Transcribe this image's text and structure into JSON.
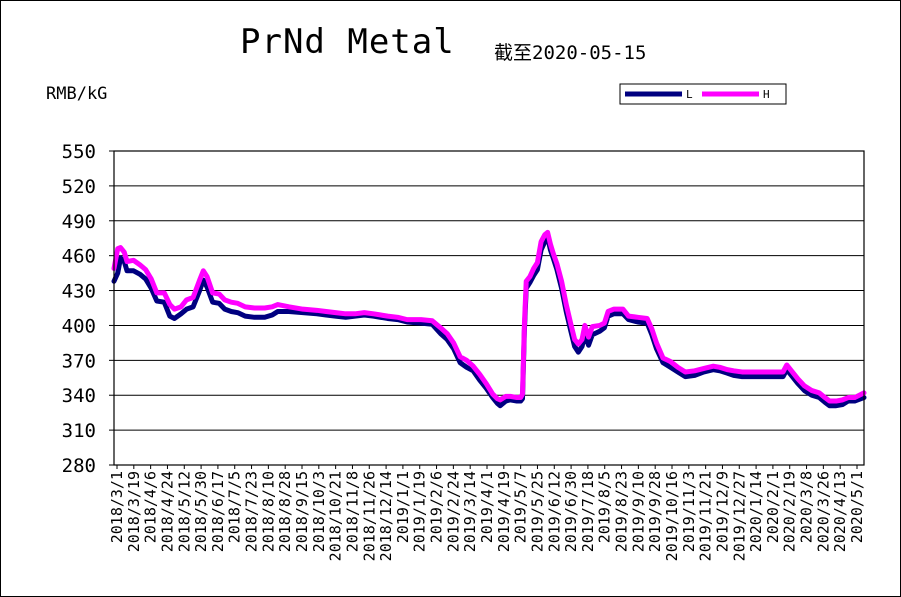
{
  "header": {
    "title": "PrNd Metal",
    "subtitle": "截至2020-05-15",
    "unit": "RMB/kG"
  },
  "colors": {
    "L": "#000080",
    "H": "#ff00ff",
    "grid": "#000000",
    "plot_bg": "#ffffff"
  },
  "chart_data": {
    "type": "line",
    "title": "PrNd Metal",
    "subtitle": "截至2020-05-15",
    "ylabel": "RMB/kG",
    "ylim": [
      280,
      550
    ],
    "yticks": [
      280,
      310,
      340,
      370,
      400,
      430,
      460,
      490,
      520,
      550
    ],
    "grid": true,
    "legend": "top-right",
    "xlim": [
      "2018-03-01",
      "2020-05-15"
    ],
    "xtick_labels": [
      "2018/3/1",
      "2018/3/19",
      "2018/4/6",
      "2018/4/24",
      "2018/5/12",
      "2018/5/30",
      "2018/6/17",
      "2018/7/5",
      "2018/7/23",
      "2018/8/10",
      "2018/8/28",
      "2018/9/15",
      "2018/10/3",
      "2018/10/21",
      "2018/11/8",
      "2018/11/26",
      "2018/12/14",
      "2019/1/1",
      "2019/1/19",
      "2019/2/6",
      "2019/2/24",
      "2019/3/14",
      "2019/4/1",
      "2019/4/19",
      "2019/5/7",
      "2019/5/25",
      "2019/6/12",
      "2019/6/30",
      "2019/7/18",
      "2019/8/5",
      "2019/8/23",
      "2019/9/10",
      "2019/9/28",
      "2019/10/16",
      "2019/11/3",
      "2019/11/21",
      "2019/12/9",
      "2019/12/27",
      "2020/1/14",
      "2020/2/1",
      "2020/2/19",
      "2020/3/8",
      "2020/3/26",
      "2020/4/13",
      "2020/5/1"
    ],
    "series": [
      {
        "name": "L",
        "points": [
          [
            "2018-03-01",
            438
          ],
          [
            "2018-03-05",
            445
          ],
          [
            "2018-03-08",
            458
          ],
          [
            "2018-03-12",
            455
          ],
          [
            "2018-03-15",
            447
          ],
          [
            "2018-03-22",
            447
          ],
          [
            "2018-03-29",
            444
          ],
          [
            "2018-04-04",
            440
          ],
          [
            "2018-04-10",
            432
          ],
          [
            "2018-04-16",
            421
          ],
          [
            "2018-04-24",
            420
          ],
          [
            "2018-04-30",
            408
          ],
          [
            "2018-05-05",
            406
          ],
          [
            "2018-05-12",
            410
          ],
          [
            "2018-05-18",
            414
          ],
          [
            "2018-05-25",
            416
          ],
          [
            "2018-06-01",
            430
          ],
          [
            "2018-06-05",
            439
          ],
          [
            "2018-06-09",
            433
          ],
          [
            "2018-06-15",
            420
          ],
          [
            "2018-06-22",
            419
          ],
          [
            "2018-06-28",
            414
          ],
          [
            "2018-07-05",
            412
          ],
          [
            "2018-07-12",
            411
          ],
          [
            "2018-07-20",
            408
          ],
          [
            "2018-07-30",
            407
          ],
          [
            "2018-08-10",
            407
          ],
          [
            "2018-08-18",
            409
          ],
          [
            "2018-08-24",
            412
          ],
          [
            "2018-09-05",
            412
          ],
          [
            "2018-09-20",
            411
          ],
          [
            "2018-10-05",
            410
          ],
          [
            "2018-10-15",
            409
          ],
          [
            "2018-10-25",
            408
          ],
          [
            "2018-11-05",
            407
          ],
          [
            "2018-11-15",
            408
          ],
          [
            "2018-11-25",
            409
          ],
          [
            "2018-12-05",
            408
          ],
          [
            "2018-12-20",
            406
          ],
          [
            "2018-12-31",
            405
          ],
          [
            "2019-01-10",
            403
          ],
          [
            "2019-01-25",
            402
          ],
          [
            "2019-02-06",
            401
          ],
          [
            "2019-02-15",
            393
          ],
          [
            "2019-02-22",
            388
          ],
          [
            "2019-03-01",
            380
          ],
          [
            "2019-03-08",
            368
          ],
          [
            "2019-03-15",
            364
          ],
          [
            "2019-03-22",
            361
          ],
          [
            "2019-03-29",
            353
          ],
          [
            "2019-04-05",
            346
          ],
          [
            "2019-04-12",
            338
          ],
          [
            "2019-04-17",
            333
          ],
          [
            "2019-04-20",
            331
          ],
          [
            "2019-04-26",
            335
          ],
          [
            "2019-05-01",
            336
          ],
          [
            "2019-05-08",
            335
          ],
          [
            "2019-05-12",
            335
          ],
          [
            "2019-05-14",
            337
          ],
          [
            "2019-05-16",
            395
          ],
          [
            "2019-05-18",
            432
          ],
          [
            "2019-05-22",
            437
          ],
          [
            "2019-05-26",
            443
          ],
          [
            "2019-05-30",
            448
          ],
          [
            "2019-06-03",
            465
          ],
          [
            "2019-06-07",
            472
          ],
          [
            "2019-06-10",
            476
          ],
          [
            "2019-06-13",
            465
          ],
          [
            "2019-06-16",
            458
          ],
          [
            "2019-06-20",
            448
          ],
          [
            "2019-06-25",
            432
          ],
          [
            "2019-06-30",
            412
          ],
          [
            "2019-07-05",
            395
          ],
          [
            "2019-07-09",
            382
          ],
          [
            "2019-07-13",
            377
          ],
          [
            "2019-07-17",
            382
          ],
          [
            "2019-07-20",
            392
          ],
          [
            "2019-07-24",
            383
          ],
          [
            "2019-07-28",
            392
          ],
          [
            "2019-08-05",
            395
          ],
          [
            "2019-08-10",
            398
          ],
          [
            "2019-08-14",
            408
          ],
          [
            "2019-08-20",
            410
          ],
          [
            "2019-08-30",
            410
          ],
          [
            "2019-09-05",
            405
          ],
          [
            "2019-09-15",
            403
          ],
          [
            "2019-09-25",
            402
          ],
          [
            "2019-09-30",
            392
          ],
          [
            "2019-10-05",
            380
          ],
          [
            "2019-10-12",
            368
          ],
          [
            "2019-10-20",
            364
          ],
          [
            "2019-10-28",
            360
          ],
          [
            "2019-11-05",
            356
          ],
          [
            "2019-11-15",
            357
          ],
          [
            "2019-11-25",
            360
          ],
          [
            "2019-12-05",
            362
          ],
          [
            "2019-12-12",
            361
          ],
          [
            "2019-12-20",
            359
          ],
          [
            "2019-12-27",
            357
          ],
          [
            "2020-01-05",
            356
          ],
          [
            "2020-01-20",
            356
          ],
          [
            "2020-02-05",
            356
          ],
          [
            "2020-02-18",
            356
          ],
          [
            "2020-02-22",
            362
          ],
          [
            "2020-02-28",
            356
          ],
          [
            "2020-03-05",
            350
          ],
          [
            "2020-03-12",
            344
          ],
          [
            "2020-03-20",
            340
          ],
          [
            "2020-03-28",
            338
          ],
          [
            "2020-04-03",
            334
          ],
          [
            "2020-04-08",
            331
          ],
          [
            "2020-04-15",
            331
          ],
          [
            "2020-04-22",
            332
          ],
          [
            "2020-04-28",
            335
          ],
          [
            "2020-05-05",
            335
          ],
          [
            "2020-05-15",
            338
          ]
        ]
      },
      {
        "name": "H",
        "points": [
          [
            "2018-03-01",
            449
          ],
          [
            "2018-03-05",
            466
          ],
          [
            "2018-03-08",
            467
          ],
          [
            "2018-03-12",
            463
          ],
          [
            "2018-03-15",
            455
          ],
          [
            "2018-03-22",
            456
          ],
          [
            "2018-03-29",
            452
          ],
          [
            "2018-04-04",
            448
          ],
          [
            "2018-04-10",
            440
          ],
          [
            "2018-04-16",
            428
          ],
          [
            "2018-04-24",
            428
          ],
          [
            "2018-04-30",
            418
          ],
          [
            "2018-05-05",
            414
          ],
          [
            "2018-05-12",
            416
          ],
          [
            "2018-05-18",
            422
          ],
          [
            "2018-05-25",
            424
          ],
          [
            "2018-06-01",
            439
          ],
          [
            "2018-06-05",
            447
          ],
          [
            "2018-06-09",
            442
          ],
          [
            "2018-06-15",
            428
          ],
          [
            "2018-06-22",
            427
          ],
          [
            "2018-06-28",
            422
          ],
          [
            "2018-07-05",
            420
          ],
          [
            "2018-07-12",
            419
          ],
          [
            "2018-07-20",
            416
          ],
          [
            "2018-07-30",
            415
          ],
          [
            "2018-08-10",
            415
          ],
          [
            "2018-08-18",
            416
          ],
          [
            "2018-08-24",
            418
          ],
          [
            "2018-09-05",
            416
          ],
          [
            "2018-09-20",
            414
          ],
          [
            "2018-10-05",
            413
          ],
          [
            "2018-10-15",
            412
          ],
          [
            "2018-10-25",
            411
          ],
          [
            "2018-11-05",
            410
          ],
          [
            "2018-11-15",
            410
          ],
          [
            "2018-11-25",
            411
          ],
          [
            "2018-12-05",
            410
          ],
          [
            "2018-12-20",
            408
          ],
          [
            "2018-12-31",
            407
          ],
          [
            "2019-01-10",
            405
          ],
          [
            "2019-01-25",
            405
          ],
          [
            "2019-02-06",
            404
          ],
          [
            "2019-02-15",
            398
          ],
          [
            "2019-02-22",
            393
          ],
          [
            "2019-03-01",
            385
          ],
          [
            "2019-03-08",
            373
          ],
          [
            "2019-03-15",
            370
          ],
          [
            "2019-03-22",
            365
          ],
          [
            "2019-03-29",
            358
          ],
          [
            "2019-04-05",
            350
          ],
          [
            "2019-04-12",
            341
          ],
          [
            "2019-04-17",
            337
          ],
          [
            "2019-04-20",
            336
          ],
          [
            "2019-04-26",
            339
          ],
          [
            "2019-05-01",
            339
          ],
          [
            "2019-05-08",
            338
          ],
          [
            "2019-05-12",
            338
          ],
          [
            "2019-05-14",
            341
          ],
          [
            "2019-05-16",
            400
          ],
          [
            "2019-05-18",
            438
          ],
          [
            "2019-05-22",
            442
          ],
          [
            "2019-05-26",
            449
          ],
          [
            "2019-05-30",
            454
          ],
          [
            "2019-06-03",
            472
          ],
          [
            "2019-06-07",
            478
          ],
          [
            "2019-06-10",
            480
          ],
          [
            "2019-06-13",
            470
          ],
          [
            "2019-06-16",
            462
          ],
          [
            "2019-06-20",
            453
          ],
          [
            "2019-06-25",
            438
          ],
          [
            "2019-06-30",
            418
          ],
          [
            "2019-07-05",
            401
          ],
          [
            "2019-07-09",
            388
          ],
          [
            "2019-07-13",
            384
          ],
          [
            "2019-07-17",
            388
          ],
          [
            "2019-07-20",
            400
          ],
          [
            "2019-07-24",
            390
          ],
          [
            "2019-07-28",
            399
          ],
          [
            "2019-08-05",
            400
          ],
          [
            "2019-08-10",
            402
          ],
          [
            "2019-08-14",
            412
          ],
          [
            "2019-08-20",
            414
          ],
          [
            "2019-08-30",
            414
          ],
          [
            "2019-09-05",
            408
          ],
          [
            "2019-09-15",
            407
          ],
          [
            "2019-09-25",
            406
          ],
          [
            "2019-09-30",
            397
          ],
          [
            "2019-10-05",
            385
          ],
          [
            "2019-10-12",
            372
          ],
          [
            "2019-10-20",
            369
          ],
          [
            "2019-10-28",
            364
          ],
          [
            "2019-11-05",
            360
          ],
          [
            "2019-11-15",
            361
          ],
          [
            "2019-11-25",
            363
          ],
          [
            "2019-12-05",
            365
          ],
          [
            "2019-12-12",
            364
          ],
          [
            "2019-12-20",
            362
          ],
          [
            "2019-12-27",
            361
          ],
          [
            "2020-01-05",
            360
          ],
          [
            "2020-01-20",
            360
          ],
          [
            "2020-02-05",
            360
          ],
          [
            "2020-02-18",
            360
          ],
          [
            "2020-02-22",
            366
          ],
          [
            "2020-02-28",
            360
          ],
          [
            "2020-03-05",
            354
          ],
          [
            "2020-03-12",
            348
          ],
          [
            "2020-03-20",
            344
          ],
          [
            "2020-03-28",
            342
          ],
          [
            "2020-04-03",
            338
          ],
          [
            "2020-04-08",
            335
          ],
          [
            "2020-04-15",
            335
          ],
          [
            "2020-04-22",
            336
          ],
          [
            "2020-04-28",
            338
          ],
          [
            "2020-05-05",
            338
          ],
          [
            "2020-05-15",
            342
          ]
        ]
      }
    ]
  }
}
